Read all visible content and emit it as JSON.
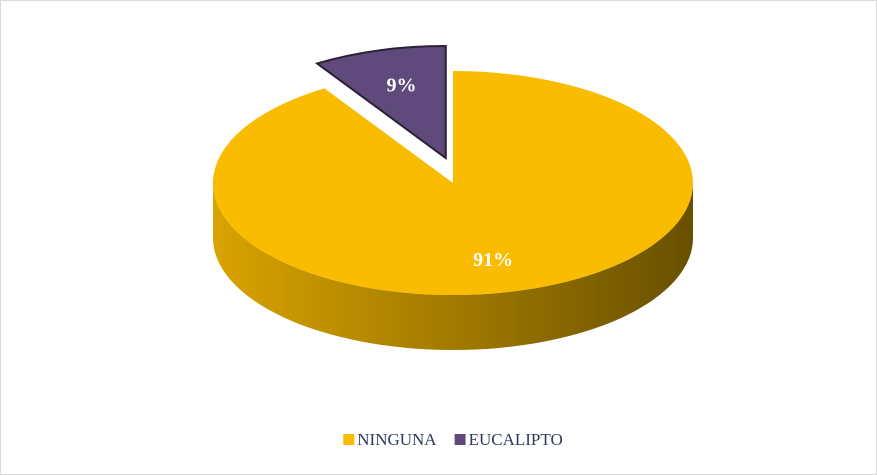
{
  "chart_data": {
    "type": "pie",
    "categories": [
      "NINGUNA",
      "EUCALIPTO"
    ],
    "values": [
      91,
      9
    ],
    "value_labels": [
      "91%",
      "9%"
    ],
    "colors": [
      "#f9bc00",
      "#5f4a7b"
    ],
    "legend": "bottom"
  }
}
